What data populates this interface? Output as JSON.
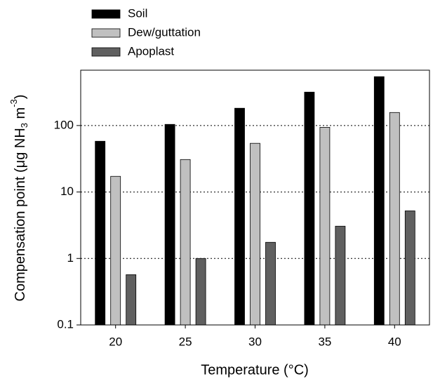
{
  "chart_data": {
    "type": "bar",
    "log_scale": true,
    "grid": true,
    "legend": "top-left",
    "x_label": "Temperature (°C)",
    "y_label": [
      "Compensation point (μg NH",
      "3",
      " m",
      "-3",
      ")"
    ],
    "categories": [
      "20",
      "25",
      "30",
      "35",
      "40"
    ],
    "series": [
      {
        "name": "Soil",
        "color": "#000000",
        "values": [
          58,
          104,
          182,
          318,
          543
        ]
      },
      {
        "name": "Dew/guttation",
        "color": "#c0c0c0",
        "values": [
          17.2,
          30.8,
          54,
          94,
          157
        ]
      },
      {
        "name": "Apoplast",
        "color": "#606060",
        "values": [
          0.57,
          1.0,
          1.75,
          3.06,
          5.2
        ]
      }
    ],
    "ylim": [
      0.1,
      680
    ],
    "yticks": [
      0.1,
      1,
      10,
      100
    ]
  }
}
